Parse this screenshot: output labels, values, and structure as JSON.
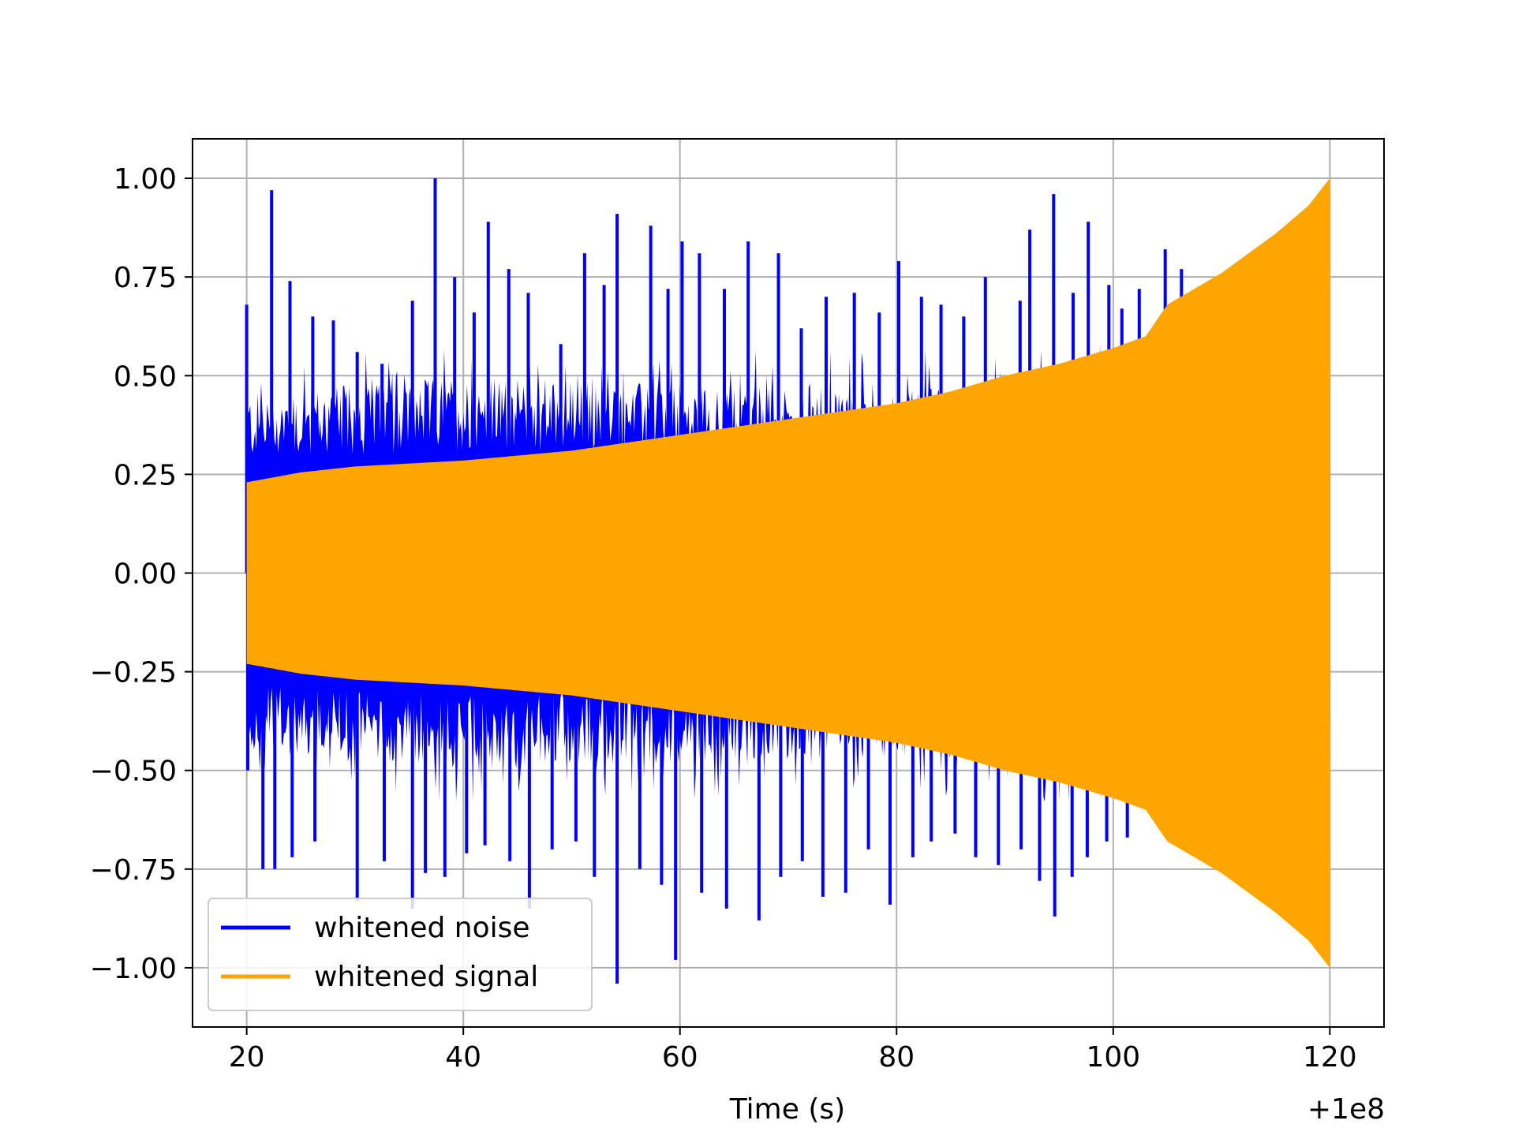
{
  "chart_data": {
    "type": "line",
    "title": "",
    "xlabel": "Time (s)",
    "ylabel": "",
    "x_offset_label": "+1e8",
    "xlim": [
      15,
      125
    ],
    "ylim": [
      -1.15,
      1.1
    ],
    "x_ticks": [
      20,
      40,
      60,
      80,
      100,
      120
    ],
    "y_ticks": [
      1.0,
      0.75,
      0.5,
      0.25,
      0.0,
      -0.25,
      -0.5,
      -0.75,
      -1.0
    ],
    "x_tick_labels": [
      "20",
      "40",
      "60",
      "80",
      "100",
      "120"
    ],
    "y_tick_labels": [
      "1.00",
      "0.75",
      "0.50",
      "0.25",
      "0.00",
      "−0.25",
      "−0.50",
      "−0.75",
      "−1.00"
    ],
    "grid": true,
    "legend_position": "lower-left",
    "series": [
      {
        "name": "whitened noise",
        "color": "#0000ff",
        "x_range": [
          20,
          120
        ],
        "typical_envelope": [
          {
            "x": 20,
            "y": 0.46
          },
          {
            "x": 40,
            "y": 0.5
          },
          {
            "x": 60,
            "y": 0.48
          },
          {
            "x": 80,
            "y": 0.47
          },
          {
            "x": 100,
            "y": 0.49
          },
          {
            "x": 120,
            "y": 0.48
          }
        ],
        "peaks": [
          {
            "x": 20.0,
            "y": 0.68
          },
          {
            "x": 22.3,
            "y": 0.97
          },
          {
            "x": 24.0,
            "y": 0.74
          },
          {
            "x": 26.1,
            "y": 0.65
          },
          {
            "x": 28.0,
            "y": 0.64
          },
          {
            "x": 30.2,
            "y": 0.56
          },
          {
            "x": 32.5,
            "y": 0.53
          },
          {
            "x": 35.3,
            "y": 0.69
          },
          {
            "x": 37.4,
            "y": 1.0
          },
          {
            "x": 39.2,
            "y": 0.75
          },
          {
            "x": 41.0,
            "y": 0.66
          },
          {
            "x": 42.3,
            "y": 0.89
          },
          {
            "x": 44.2,
            "y": 0.77
          },
          {
            "x": 46.0,
            "y": 0.71
          },
          {
            "x": 49.0,
            "y": 0.58
          },
          {
            "x": 51.2,
            "y": 0.81
          },
          {
            "x": 53.0,
            "y": 0.73
          },
          {
            "x": 54.2,
            "y": 0.91
          },
          {
            "x": 57.3,
            "y": 0.88
          },
          {
            "x": 58.9,
            "y": 0.72
          },
          {
            "x": 60.2,
            "y": 0.84
          },
          {
            "x": 61.8,
            "y": 0.81
          },
          {
            "x": 64.1,
            "y": 0.72
          },
          {
            "x": 66.3,
            "y": 0.84
          },
          {
            "x": 69.1,
            "y": 0.81
          },
          {
            "x": 71.2,
            "y": 0.62
          },
          {
            "x": 73.5,
            "y": 0.7
          },
          {
            "x": 76.1,
            "y": 0.71
          },
          {
            "x": 78.4,
            "y": 0.66
          },
          {
            "x": 80.2,
            "y": 0.79
          },
          {
            "x": 82.3,
            "y": 0.7
          },
          {
            "x": 84.1,
            "y": 0.68
          },
          {
            "x": 86.2,
            "y": 0.65
          },
          {
            "x": 88.2,
            "y": 0.75
          },
          {
            "x": 91.4,
            "y": 0.69
          },
          {
            "x": 92.3,
            "y": 0.87
          },
          {
            "x": 94.5,
            "y": 0.96
          },
          {
            "x": 96.3,
            "y": 0.71
          },
          {
            "x": 97.7,
            "y": 0.89
          },
          {
            "x": 99.6,
            "y": 0.73
          },
          {
            "x": 100.8,
            "y": 0.67
          },
          {
            "x": 102.4,
            "y": 0.72
          },
          {
            "x": 104.8,
            "y": 0.82
          },
          {
            "x": 106.3,
            "y": 0.77
          }
        ],
        "troughs": [
          {
            "x": 20.1,
            "y": -0.5
          },
          {
            "x": 21.5,
            "y": -0.75
          },
          {
            "x": 22.6,
            "y": -0.75
          },
          {
            "x": 24.2,
            "y": -0.72
          },
          {
            "x": 26.3,
            "y": -0.68
          },
          {
            "x": 30.2,
            "y": -0.83
          },
          {
            "x": 32.7,
            "y": -0.73
          },
          {
            "x": 35.3,
            "y": -0.85
          },
          {
            "x": 36.5,
            "y": -0.76
          },
          {
            "x": 38.3,
            "y": -0.77
          },
          {
            "x": 40.3,
            "y": -0.71
          },
          {
            "x": 42.0,
            "y": -0.69
          },
          {
            "x": 44.3,
            "y": -0.73
          },
          {
            "x": 46.1,
            "y": -0.85
          },
          {
            "x": 48.2,
            "y": -0.7
          },
          {
            "x": 50.4,
            "y": -0.68
          },
          {
            "x": 52.1,
            "y": -0.77
          },
          {
            "x": 54.2,
            "y": -1.04
          },
          {
            "x": 56.3,
            "y": -0.75
          },
          {
            "x": 58.3,
            "y": -0.79
          },
          {
            "x": 59.6,
            "y": -0.98
          },
          {
            "x": 62.0,
            "y": -0.81
          },
          {
            "x": 64.3,
            "y": -0.85
          },
          {
            "x": 67.3,
            "y": -0.88
          },
          {
            "x": 69.3,
            "y": -0.77
          },
          {
            "x": 71.3,
            "y": -0.73
          },
          {
            "x": 73.2,
            "y": -0.82
          },
          {
            "x": 75.3,
            "y": -0.81
          },
          {
            "x": 77.4,
            "y": -0.7
          },
          {
            "x": 79.4,
            "y": -0.84
          },
          {
            "x": 81.5,
            "y": -0.72
          },
          {
            "x": 83.2,
            "y": -0.68
          },
          {
            "x": 85.4,
            "y": -0.66
          },
          {
            "x": 87.3,
            "y": -0.72
          },
          {
            "x": 89.4,
            "y": -0.74
          },
          {
            "x": 91.5,
            "y": -0.7
          },
          {
            "x": 93.2,
            "y": -0.78
          },
          {
            "x": 94.6,
            "y": -0.87
          },
          {
            "x": 96.2,
            "y": -0.77
          },
          {
            "x": 97.6,
            "y": -0.72
          },
          {
            "x": 99.4,
            "y": -0.68
          },
          {
            "x": 101.3,
            "y": -0.67
          }
        ]
      },
      {
        "name": "whitened signal",
        "color": "#ffa500",
        "x_range": [
          20,
          120
        ],
        "envelope": [
          {
            "x": 20,
            "y": 0.23
          },
          {
            "x": 25,
            "y": 0.255
          },
          {
            "x": 30,
            "y": 0.27
          },
          {
            "x": 40,
            "y": 0.285
          },
          {
            "x": 50,
            "y": 0.31
          },
          {
            "x": 60,
            "y": 0.35
          },
          {
            "x": 70,
            "y": 0.39
          },
          {
            "x": 80,
            "y": 0.43
          },
          {
            "x": 85,
            "y": 0.46
          },
          {
            "x": 90,
            "y": 0.5
          },
          {
            "x": 95,
            "y": 0.53
          },
          {
            "x": 100,
            "y": 0.57
          },
          {
            "x": 103,
            "y": 0.6
          },
          {
            "x": 105,
            "y": 0.68
          },
          {
            "x": 110,
            "y": 0.76
          },
          {
            "x": 115,
            "y": 0.86
          },
          {
            "x": 118,
            "y": 0.93
          },
          {
            "x": 120,
            "y": 1.0
          }
        ]
      }
    ]
  }
}
